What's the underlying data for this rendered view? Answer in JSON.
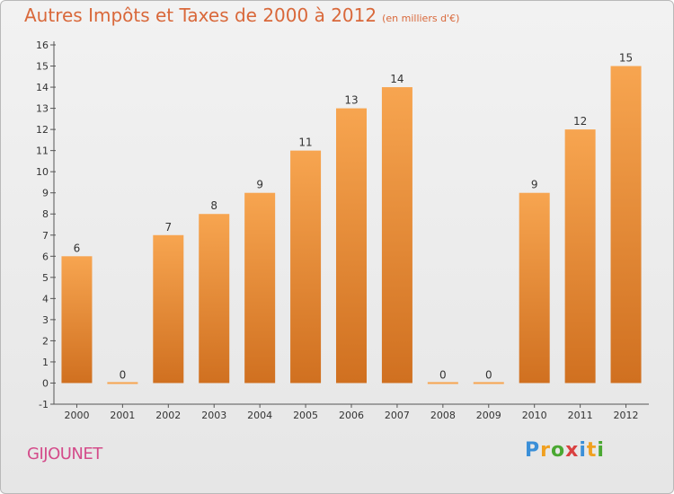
{
  "title": {
    "main": "Autres Impôts et Taxes de 2000 à 2012",
    "sub": "(en milliers d'€)"
  },
  "commune": "GIJOUNET",
  "logo": {
    "letters": [
      "P",
      "r",
      "o",
      "x",
      "i",
      "t",
      "i"
    ],
    "colors": [
      "#3a8fd8",
      "#f0a020",
      "#4aa832",
      "#d94040",
      "#3a8fd8",
      "#f0a020",
      "#4aa832"
    ]
  },
  "colors": {
    "bar_light": "#f7a550",
    "bar_dark": "#d07020",
    "title": "#d9683a",
    "commune": "#d44b8a"
  },
  "chart_data": {
    "type": "bar",
    "categories": [
      "2000",
      "2001",
      "2002",
      "2003",
      "2004",
      "2005",
      "2006",
      "2007",
      "2008",
      "2009",
      "2010",
      "2011",
      "2012"
    ],
    "values": [
      6,
      0,
      7,
      8,
      9,
      11,
      13,
      14,
      0,
      0,
      9,
      12,
      15
    ],
    "ylim": [
      -1,
      16
    ],
    "yticks": [
      -1,
      0,
      1,
      2,
      3,
      4,
      5,
      6,
      7,
      8,
      9,
      10,
      11,
      12,
      13,
      14,
      15,
      16
    ],
    "grid": false
  }
}
